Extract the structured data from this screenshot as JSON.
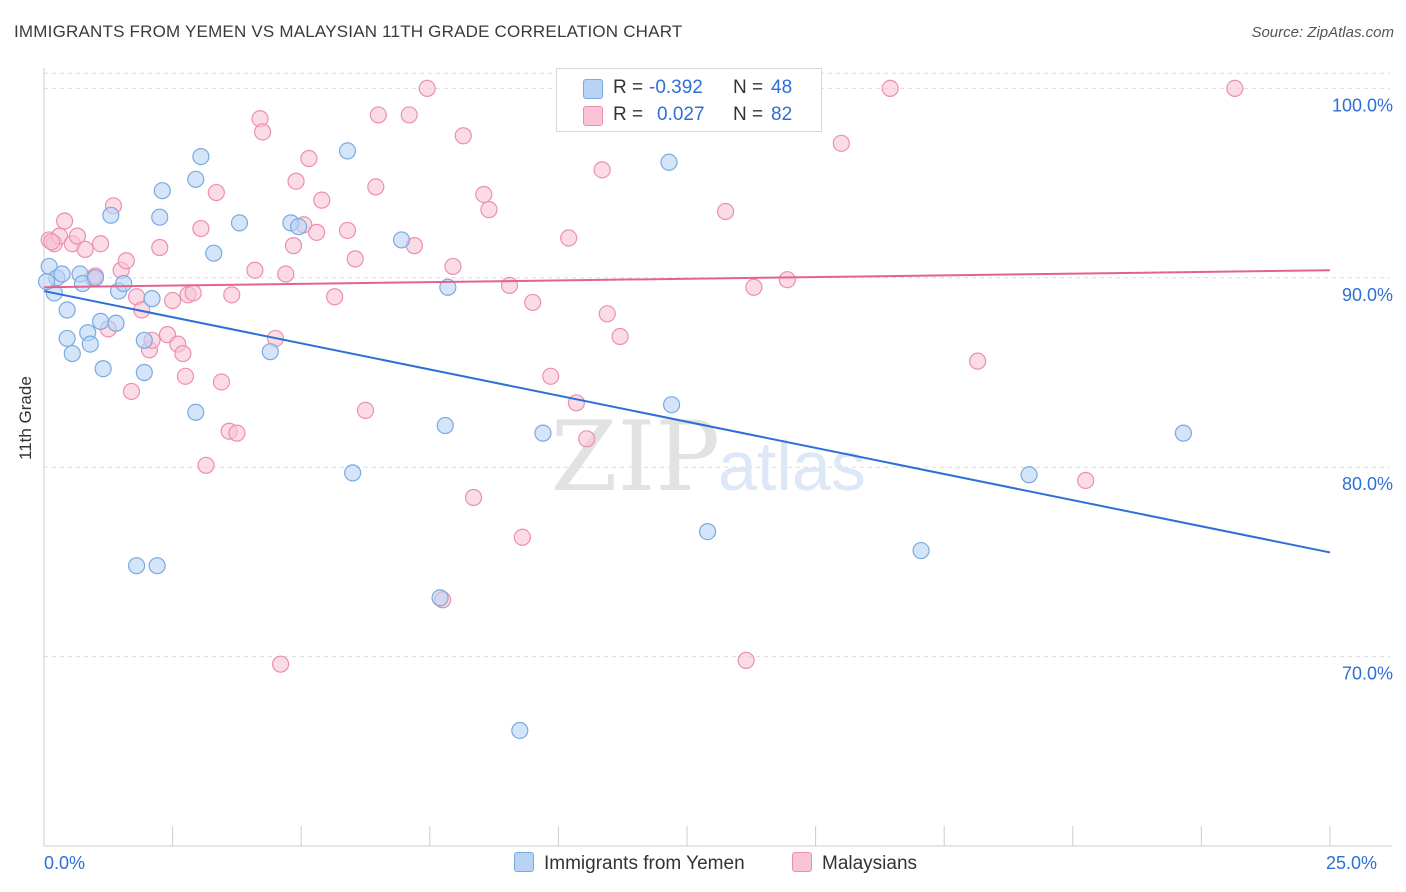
{
  "header": {
    "title": "IMMIGRANTS FROM YEMEN VS MALAYSIAN 11TH GRADE CORRELATION CHART",
    "source": "Source: ZipAtlas.com"
  },
  "watermark": {
    "zip": "ZIP",
    "atlas": "atlas"
  },
  "colors": {
    "blue_fill": "#b9d3f5",
    "blue_stroke": "#7aaae0",
    "blue_line": "#2e6fd6",
    "pink_fill": "#f9c5d6",
    "pink_stroke": "#ec8fae",
    "pink_line": "#e4638e",
    "axis_text": "#2e6fd6",
    "grid": "#dddddd"
  },
  "legend": {
    "series": [
      {
        "name": "Immigrants from Yemen",
        "r_label": "R =",
        "r_value": "-0.392",
        "n_label": "N =",
        "n_value": "48"
      },
      {
        "name": "Malaysians",
        "r_label": "R =",
        "r_value": "0.027",
        "n_label": "N =",
        "n_value": "82"
      }
    ]
  },
  "chart_data": {
    "type": "scatter",
    "title": "IMMIGRANTS FROM YEMEN VS MALAYSIAN 11TH GRADE CORRELATION CHART",
    "xlabel": "",
    "ylabel": "11th Grade",
    "xlim": [
      0,
      25
    ],
    "ylim": [
      60,
      101.5
    ],
    "x_tick_labels": [
      "0.0%",
      "25.0%"
    ],
    "y_ticks": [
      70,
      80,
      90,
      100
    ],
    "y_tick_labels": [
      "70.0%",
      "80.0%",
      "90.0%",
      "100.0%"
    ],
    "grid": true,
    "series": [
      {
        "name": "Immigrants from Yemen",
        "trend": {
          "x": [
            0,
            25
          ],
          "y": [
            89.3,
            75.5
          ]
        },
        "points": [
          [
            0.1,
            90.6
          ],
          [
            0.2,
            89.2
          ],
          [
            0.25,
            90.0
          ],
          [
            0.35,
            90.2
          ],
          [
            0.45,
            88.3
          ],
          [
            0.45,
            86.8
          ],
          [
            0.55,
            86.0
          ],
          [
            0.7,
            90.2
          ],
          [
            0.75,
            89.7
          ],
          [
            0.85,
            87.1
          ],
          [
            0.9,
            86.5
          ],
          [
            1.0,
            90.0
          ],
          [
            1.1,
            87.7
          ],
          [
            1.15,
            85.2
          ],
          [
            1.3,
            93.3
          ],
          [
            1.4,
            87.6
          ],
          [
            1.45,
            89.3
          ],
          [
            1.55,
            89.7
          ],
          [
            1.8,
            74.8
          ],
          [
            1.95,
            86.7
          ],
          [
            1.95,
            85.0
          ],
          [
            2.1,
            88.9
          ],
          [
            2.2,
            74.8
          ],
          [
            2.25,
            93.2
          ],
          [
            2.3,
            94.6
          ],
          [
            2.95,
            95.2
          ],
          [
            2.95,
            82.9
          ],
          [
            3.05,
            96.4
          ],
          [
            3.3,
            91.3
          ],
          [
            3.8,
            92.9
          ],
          [
            4.4,
            86.1
          ],
          [
            4.8,
            92.9
          ],
          [
            4.95,
            92.7
          ],
          [
            5.9,
            96.7
          ],
          [
            6.0,
            79.7
          ],
          [
            6.95,
            92.0
          ],
          [
            7.7,
            73.1
          ],
          [
            7.8,
            82.2
          ],
          [
            7.85,
            89.5
          ],
          [
            9.25,
            66.1
          ],
          [
            9.7,
            81.8
          ],
          [
            12.15,
            96.1
          ],
          [
            12.2,
            83.3
          ],
          [
            12.9,
            76.6
          ],
          [
            17.05,
            75.6
          ],
          [
            19.15,
            79.6
          ],
          [
            22.15,
            81.8
          ],
          [
            0.05,
            89.8
          ]
        ]
      },
      {
        "name": "Malaysians",
        "trend": {
          "x": [
            0,
            25
          ],
          "y": [
            89.5,
            90.4
          ]
        },
        "points": [
          [
            0.1,
            92.0
          ],
          [
            0.2,
            91.8
          ],
          [
            0.3,
            92.2
          ],
          [
            0.4,
            93.0
          ],
          [
            0.55,
            91.8
          ],
          [
            0.65,
            92.2
          ],
          [
            0.8,
            91.5
          ],
          [
            0.95,
            90.0
          ],
          [
            1.0,
            90.1
          ],
          [
            1.1,
            91.8
          ],
          [
            1.25,
            87.3
          ],
          [
            1.35,
            93.8
          ],
          [
            1.5,
            90.4
          ],
          [
            1.6,
            90.9
          ],
          [
            1.7,
            84.0
          ],
          [
            1.8,
            89.0
          ],
          [
            1.9,
            88.3
          ],
          [
            2.05,
            86.2
          ],
          [
            2.1,
            86.7
          ],
          [
            2.25,
            91.6
          ],
          [
            2.4,
            87.0
          ],
          [
            2.5,
            88.8
          ],
          [
            2.6,
            86.5
          ],
          [
            2.7,
            86.0
          ],
          [
            2.75,
            84.8
          ],
          [
            2.8,
            89.1
          ],
          [
            2.9,
            89.2
          ],
          [
            3.05,
            92.6
          ],
          [
            3.15,
            80.1
          ],
          [
            3.35,
            94.5
          ],
          [
            3.45,
            84.5
          ],
          [
            3.6,
            81.9
          ],
          [
            3.75,
            81.8
          ],
          [
            3.65,
            89.1
          ],
          [
            4.1,
            90.4
          ],
          [
            4.2,
            98.4
          ],
          [
            4.25,
            97.7
          ],
          [
            4.5,
            86.8
          ],
          [
            4.6,
            69.6
          ],
          [
            4.7,
            90.2
          ],
          [
            4.85,
            91.7
          ],
          [
            4.9,
            95.1
          ],
          [
            5.05,
            92.8
          ],
          [
            5.15,
            96.3
          ],
          [
            5.3,
            92.4
          ],
          [
            5.4,
            94.1
          ],
          [
            5.65,
            89.0
          ],
          [
            5.9,
            92.5
          ],
          [
            6.05,
            91.0
          ],
          [
            6.25,
            83.0
          ],
          [
            6.45,
            94.8
          ],
          [
            6.5,
            98.6
          ],
          [
            7.1,
            98.6
          ],
          [
            7.2,
            91.7
          ],
          [
            7.45,
            100.0
          ],
          [
            7.75,
            73.0
          ],
          [
            7.95,
            90.6
          ],
          [
            8.15,
            97.5
          ],
          [
            8.35,
            78.4
          ],
          [
            8.55,
            94.4
          ],
          [
            8.65,
            93.6
          ],
          [
            9.05,
            89.6
          ],
          [
            9.3,
            76.3
          ],
          [
            9.5,
            88.7
          ],
          [
            9.85,
            84.8
          ],
          [
            10.2,
            92.1
          ],
          [
            10.35,
            83.4
          ],
          [
            10.55,
            81.5
          ],
          [
            10.85,
            95.7
          ],
          [
            10.95,
            88.1
          ],
          [
            11.2,
            86.9
          ],
          [
            11.55,
            100.0
          ],
          [
            13.25,
            93.5
          ],
          [
            13.65,
            69.8
          ],
          [
            13.8,
            89.5
          ],
          [
            14.45,
            89.9
          ],
          [
            15.5,
            97.1
          ],
          [
            16.45,
            100.0
          ],
          [
            18.15,
            85.6
          ],
          [
            20.25,
            79.3
          ],
          [
            23.15,
            100.0
          ],
          [
            0.15,
            91.9
          ]
        ]
      }
    ]
  }
}
